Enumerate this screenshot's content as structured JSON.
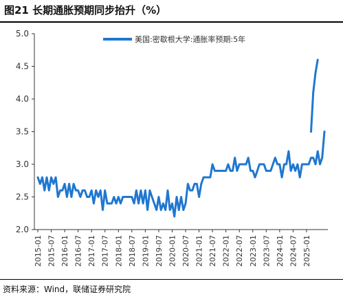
{
  "figure": {
    "title": "图21 长期通胀预期同步抬升（%）",
    "source": "资料来源：Wind，联储证券研究院"
  },
  "chart_data": {
    "type": "line",
    "title": "",
    "xlabel": "",
    "ylabel": "",
    "ylim": [
      2.0,
      5.0
    ],
    "yticks": [
      "2.0",
      "2.5",
      "3.0",
      "3.5",
      "4.0",
      "4.5",
      "5.0"
    ],
    "xticks": [
      "2015-01",
      "2015-07",
      "2016-01",
      "2016-07",
      "2017-01",
      "2017-07",
      "2018-01",
      "2018-07",
      "2019-01",
      "2019-07",
      "2020-01",
      "2020-07",
      "2021-01",
      "2021-07",
      "2022-01",
      "2022-07",
      "2023-01",
      "2023-07",
      "2024-01",
      "2024-07",
      "2025-01"
    ],
    "xrange": [
      "2015-01",
      "2025-09"
    ],
    "legend": "top-center",
    "grid": false,
    "color": "#1F77D0",
    "series": [
      {
        "name": "美国:密歇根大学:通胀率预期:5年",
        "x": [
          "2015-01",
          "2015-02",
          "2015-03",
          "2015-04",
          "2015-05",
          "2015-06",
          "2015-07",
          "2015-08",
          "2015-09",
          "2015-10",
          "2015-11",
          "2015-12",
          "2016-01",
          "2016-02",
          "2016-03",
          "2016-04",
          "2016-05",
          "2016-06",
          "2016-07",
          "2016-08",
          "2016-09",
          "2016-10",
          "2016-11",
          "2016-12",
          "2017-01",
          "2017-02",
          "2017-03",
          "2017-04",
          "2017-05",
          "2017-06",
          "2017-07",
          "2017-08",
          "2017-09",
          "2017-10",
          "2017-11",
          "2017-12",
          "2018-01",
          "2018-02",
          "2018-03",
          "2018-04",
          "2018-05",
          "2018-06",
          "2018-07",
          "2018-08",
          "2018-09",
          "2018-10",
          "2018-11",
          "2018-12",
          "2019-01",
          "2019-02",
          "2019-03",
          "2019-04",
          "2019-05",
          "2019-06",
          "2019-07",
          "2019-08",
          "2019-09",
          "2019-10",
          "2019-11",
          "2019-12",
          "2020-01",
          "2020-02",
          "2020-03",
          "2020-04",
          "2020-05",
          "2020-06",
          "2020-07",
          "2020-08",
          "2020-09",
          "2020-10",
          "2020-11",
          "2020-12",
          "2021-01",
          "2021-02",
          "2021-03",
          "2021-04",
          "2021-05",
          "2021-06",
          "2021-07",
          "2021-08",
          "2021-09",
          "2021-10",
          "2021-11",
          "2021-12",
          "2022-01",
          "2022-02",
          "2022-03",
          "2022-04",
          "2022-05",
          "2022-06",
          "2022-07",
          "2022-08",
          "2022-09",
          "2022-10",
          "2022-11",
          "2022-12",
          "2023-01",
          "2023-02",
          "2023-03",
          "2023-04",
          "2023-05",
          "2023-06",
          "2023-07",
          "2023-08",
          "2023-09",
          "2023-10",
          "2023-11",
          "2023-12",
          "2024-01",
          "2024-02",
          "2024-03",
          "2024-04",
          "2024-05",
          "2024-06",
          "2024-07",
          "2024-08",
          "2024-09",
          "2024-10",
          "2024-11",
          "2024-12",
          "2025-01",
          "2025-02",
          "2025-03",
          "2025-04",
          "2025-05",
          "2025-06",
          "2025-07",
          "2025-08",
          "2025-09"
        ],
        "values": [
          2.8,
          2.7,
          2.8,
          2.6,
          2.8,
          2.6,
          2.8,
          2.7,
          2.8,
          2.5,
          2.6,
          2.6,
          2.7,
          2.5,
          2.7,
          2.5,
          2.7,
          2.6,
          2.6,
          2.5,
          2.6,
          2.6,
          2.5,
          2.5,
          2.6,
          2.4,
          2.6,
          2.5,
          2.6,
          2.3,
          2.6,
          2.4,
          2.4,
          2.4,
          2.5,
          2.4,
          2.5,
          2.4,
          2.5,
          2.5,
          2.5,
          2.5,
          2.5,
          2.4,
          2.6,
          2.4,
          2.6,
          2.4,
          2.6,
          2.3,
          2.6,
          2.5,
          2.4,
          2.3,
          2.5,
          2.3,
          2.4,
          2.3,
          2.6,
          2.3,
          2.4,
          2.2,
          2.5,
          2.3,
          2.5,
          2.3,
          2.4,
          2.7,
          2.6,
          2.6,
          2.7,
          2.7,
          2.5,
          2.7,
          2.8,
          2.8,
          2.8,
          2.8,
          3.0,
          2.9,
          2.9,
          2.9,
          2.9,
          2.9,
          2.9,
          3.0,
          2.9,
          2.9,
          3.1,
          2.9,
          3.0,
          3.0,
          3.0,
          3.0,
          3.1,
          2.9,
          2.9,
          2.8,
          2.9,
          3.0,
          3.0,
          3.0,
          2.9,
          2.9,
          2.9,
          3.0,
          3.1,
          3.0,
          3.0,
          2.8,
          3.0,
          3.0,
          3.2,
          2.9,
          3.0,
          2.9,
          3.0,
          2.8,
          3.0,
          3.0,
          3.0,
          3.0,
          3.1,
          3.1,
          3.0,
          3.2,
          3.0,
          3.1,
          3.5
        ]
      },
      {
        "name": "",
        "x": [
          "2025-03",
          "2025-04",
          "2025-05",
          "2025-06"
        ],
        "values": [
          3.5,
          4.1,
          4.4,
          4.6
        ]
      }
    ]
  }
}
